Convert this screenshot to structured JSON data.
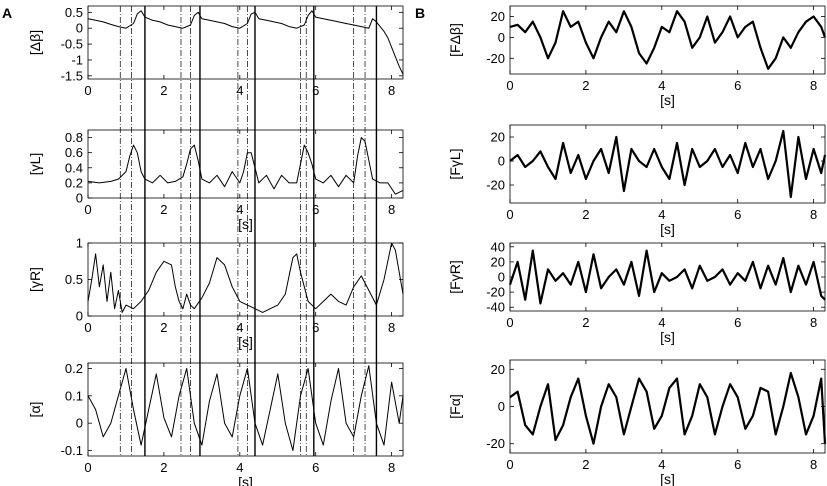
{
  "figure": {
    "panel_letters": [
      "A",
      "B"
    ]
  },
  "chart_data": [
    {
      "type": "line",
      "panel": "A",
      "ylabel": "[Δβ]",
      "xlabel": "",
      "xlim": [
        0,
        8.3
      ],
      "ylim": [
        -1.6,
        0.7
      ],
      "xticks": [
        0,
        2,
        4,
        6,
        8
      ],
      "yticks": [
        -1.5,
        -1,
        -0.5,
        0,
        0.5
      ],
      "ytick_labels": [
        "-1.5",
        "-1",
        "-0.5",
        "0",
        "0.5"
      ],
      "series": [
        {
          "color": "#000000",
          "x": [
            0,
            0.2,
            0.4,
            0.6,
            0.8,
            1.0,
            1.2,
            1.3,
            1.4,
            1.5,
            1.7,
            1.9,
            2.1,
            2.3,
            2.5,
            2.7,
            2.8,
            2.9,
            3.0,
            3.2,
            3.4,
            3.6,
            3.8,
            4.0,
            4.2,
            4.3,
            4.4,
            4.5,
            4.7,
            4.9,
            5.1,
            5.3,
            5.5,
            5.7,
            5.8,
            5.9,
            6.0,
            6.2,
            6.4,
            6.6,
            6.8,
            7.0,
            7.2,
            7.4,
            7.5,
            7.6,
            7.7,
            7.8,
            7.9,
            8.0,
            8.1,
            8.2,
            8.3
          ],
          "y": [
            0.3,
            0.25,
            0.2,
            0.12,
            0.05,
            0.0,
            0.15,
            0.45,
            0.55,
            0.35,
            0.25,
            0.2,
            0.1,
            0.05,
            0.0,
            0.1,
            0.4,
            0.5,
            0.3,
            0.25,
            0.2,
            0.15,
            0.05,
            0.0,
            0.15,
            0.45,
            0.5,
            0.3,
            0.25,
            0.2,
            0.15,
            0.05,
            0.0,
            0.1,
            0.4,
            0.55,
            0.35,
            0.3,
            0.25,
            0.2,
            0.15,
            0.1,
            0.05,
            0.0,
            0.3,
            0.2,
            0.05,
            -0.1,
            -0.3,
            -0.6,
            -0.9,
            -1.2,
            -1.45
          ]
        }
      ]
    },
    {
      "type": "line",
      "panel": "A",
      "ylabel": "[γL]",
      "xlabel": "[s]",
      "xlim": [
        0,
        8.3
      ],
      "ylim": [
        0,
        0.9
      ],
      "xticks": [
        0,
        2,
        4,
        6,
        8
      ],
      "yticks": [
        0,
        0.2,
        0.4,
        0.6,
        0.8
      ],
      "ytick_labels": [
        "0",
        "0.2",
        "0.4",
        "0.6",
        "0.8"
      ],
      "series": [
        {
          "color": "#000000",
          "x": [
            0,
            0.3,
            0.6,
            0.8,
            1.0,
            1.1,
            1.2,
            1.3,
            1.4,
            1.5,
            1.7,
            1.9,
            2.1,
            2.3,
            2.5,
            2.6,
            2.7,
            2.8,
            2.9,
            3.0,
            3.2,
            3.4,
            3.6,
            3.8,
            4.0,
            4.1,
            4.2,
            4.3,
            4.4,
            4.5,
            4.7,
            4.9,
            5.1,
            5.3,
            5.5,
            5.6,
            5.7,
            5.8,
            5.9,
            6.0,
            6.2,
            6.4,
            6.6,
            6.8,
            7.0,
            7.1,
            7.2,
            7.3,
            7.4,
            7.5,
            7.7,
            7.9,
            8.1,
            8.3
          ],
          "y": [
            0.22,
            0.2,
            0.22,
            0.25,
            0.35,
            0.55,
            0.7,
            0.6,
            0.35,
            0.25,
            0.2,
            0.3,
            0.2,
            0.22,
            0.28,
            0.45,
            0.65,
            0.7,
            0.5,
            0.25,
            0.2,
            0.3,
            0.15,
            0.35,
            0.2,
            0.35,
            0.6,
            0.6,
            0.4,
            0.2,
            0.3,
            0.12,
            0.3,
            0.2,
            0.2,
            0.45,
            0.7,
            0.6,
            0.45,
            0.25,
            0.2,
            0.3,
            0.15,
            0.3,
            0.2,
            0.55,
            0.8,
            0.75,
            0.5,
            0.25,
            0.2,
            0.2,
            0.05,
            0.1
          ]
        }
      ]
    },
    {
      "type": "line",
      "panel": "A",
      "ylabel": "[γR]",
      "xlabel": "[s]",
      "xlim": [
        0,
        8.3
      ],
      "ylim": [
        0,
        1
      ],
      "xticks": [
        0,
        2,
        4,
        6,
        8
      ],
      "yticks": [
        0,
        0.5,
        1
      ],
      "ytick_labels": [
        "0",
        "0.5",
        "1"
      ],
      "series": [
        {
          "color": "#000000",
          "x": [
            0,
            0.1,
            0.2,
            0.3,
            0.4,
            0.5,
            0.6,
            0.7,
            0.8,
            0.9,
            1.0,
            1.2,
            1.4,
            1.6,
            1.8,
            2.0,
            2.2,
            2.3,
            2.4,
            2.5,
            2.6,
            2.7,
            2.8,
            3.0,
            3.2,
            3.4,
            3.6,
            3.8,
            4.0,
            4.2,
            4.4,
            4.6,
            4.8,
            5.0,
            5.2,
            5.3,
            5.4,
            5.5,
            5.6,
            5.7,
            5.8,
            6.0,
            6.2,
            6.4,
            6.6,
            6.8,
            7.0,
            7.2,
            7.4,
            7.6,
            7.8,
            7.9,
            8.0,
            8.1,
            8.2,
            8.3
          ],
          "y": [
            0.2,
            0.5,
            0.85,
            0.4,
            0.7,
            0.2,
            0.6,
            0.1,
            0.35,
            0.05,
            0.15,
            0.1,
            0.2,
            0.35,
            0.6,
            0.75,
            0.7,
            0.4,
            0.2,
            0.1,
            0.3,
            0.15,
            0.1,
            0.25,
            0.45,
            0.8,
            0.7,
            0.4,
            0.2,
            0.15,
            0.1,
            0.05,
            0.1,
            0.15,
            0.3,
            0.55,
            0.8,
            0.85,
            0.6,
            0.4,
            0.2,
            0.1,
            0.2,
            0.3,
            0.2,
            0.15,
            0.4,
            0.55,
            0.35,
            0.15,
            0.5,
            0.75,
            1.0,
            0.9,
            0.6,
            0.3
          ]
        }
      ]
    },
    {
      "type": "line",
      "panel": "A",
      "ylabel": "[α]",
      "xlabel": "[s]",
      "xlim": [
        0,
        8.3
      ],
      "ylim": [
        -0.12,
        0.22
      ],
      "xticks": [
        0,
        2,
        4,
        6,
        8
      ],
      "yticks": [
        -0.1,
        0,
        0.1,
        0.2
      ],
      "ytick_labels": [
        "-0.1",
        "0",
        "0.1",
        "0.2"
      ],
      "series": [
        {
          "color": "#000000",
          "x": [
            0,
            0.2,
            0.4,
            0.6,
            0.8,
            1.0,
            1.2,
            1.4,
            1.6,
            1.8,
            2.0,
            2.2,
            2.4,
            2.6,
            2.8,
            3.0,
            3.2,
            3.4,
            3.6,
            3.8,
            4.0,
            4.2,
            4.4,
            4.6,
            4.8,
            5.0,
            5.2,
            5.4,
            5.6,
            5.8,
            6.0,
            6.2,
            6.4,
            6.6,
            6.8,
            7.0,
            7.2,
            7.4,
            7.6,
            7.8,
            8.0,
            8.2,
            8.3
          ],
          "y": [
            0.1,
            0.05,
            -0.05,
            0.0,
            0.1,
            0.2,
            0.05,
            -0.08,
            0.05,
            0.18,
            0.02,
            -0.05,
            0.1,
            0.2,
            0.0,
            -0.08,
            0.08,
            0.18,
            0.0,
            -0.05,
            0.1,
            0.2,
            0.0,
            -0.08,
            0.05,
            0.18,
            0.0,
            -0.1,
            0.1,
            0.2,
            0.0,
            -0.08,
            0.08,
            0.2,
            0.0,
            -0.05,
            0.1,
            0.21,
            0.0,
            -0.08,
            0.15,
            0.0,
            0.1
          ]
        }
      ]
    },
    {
      "type": "line",
      "panel": "B",
      "ylabel": "[FΔβ]",
      "xlabel": "[s]",
      "xlim": [
        0,
        8.3
      ],
      "ylim": [
        -35,
        30
      ],
      "xticks": [
        0,
        2,
        4,
        6,
        8
      ],
      "yticks": [
        -20,
        0,
        20
      ],
      "ytick_labels": [
        "-20",
        "0",
        "20"
      ],
      "series": [
        {
          "color": "#000000",
          "x": [
            0,
            0.2,
            0.4,
            0.6,
            0.8,
            1.0,
            1.2,
            1.4,
            1.6,
            1.8,
            2.0,
            2.2,
            2.4,
            2.6,
            2.8,
            3.0,
            3.2,
            3.4,
            3.6,
            3.8,
            4.0,
            4.2,
            4.4,
            4.6,
            4.8,
            5.0,
            5.2,
            5.4,
            5.6,
            5.8,
            6.0,
            6.2,
            6.4,
            6.6,
            6.8,
            7.0,
            7.2,
            7.4,
            7.6,
            7.8,
            8.0,
            8.2,
            8.3
          ],
          "y": [
            10,
            12,
            5,
            15,
            0,
            -20,
            -5,
            25,
            10,
            15,
            -5,
            -20,
            0,
            15,
            5,
            25,
            10,
            -15,
            -25,
            -10,
            10,
            5,
            25,
            15,
            -10,
            0,
            20,
            -5,
            5,
            20,
            0,
            10,
            15,
            -10,
            -30,
            -20,
            0,
            -10,
            5,
            15,
            20,
            10,
            0
          ]
        }
      ]
    },
    {
      "type": "line",
      "panel": "B",
      "ylabel": "[FγL]",
      "xlabel": "[s]",
      "xlim": [
        0,
        8.3
      ],
      "ylim": [
        -35,
        30
      ],
      "xticks": [
        0,
        2,
        4,
        6,
        8
      ],
      "yticks": [
        -20,
        0,
        20
      ],
      "ytick_labels": [
        "-20",
        "0",
        "20"
      ],
      "series": [
        {
          "color": "#000000",
          "x": [
            0,
            0.2,
            0.4,
            0.6,
            0.8,
            1.0,
            1.2,
            1.4,
            1.6,
            1.8,
            2.0,
            2.2,
            2.4,
            2.6,
            2.8,
            3.0,
            3.2,
            3.4,
            3.6,
            3.8,
            4.0,
            4.2,
            4.4,
            4.6,
            4.8,
            5.0,
            5.2,
            5.4,
            5.6,
            5.8,
            6.0,
            6.2,
            6.4,
            6.6,
            6.8,
            7.0,
            7.2,
            7.4,
            7.6,
            7.8,
            8.0,
            8.2,
            8.3
          ],
          "y": [
            0,
            5,
            -5,
            0,
            8,
            -5,
            -15,
            15,
            -10,
            5,
            -15,
            0,
            10,
            -10,
            20,
            -25,
            10,
            0,
            -5,
            10,
            -5,
            -15,
            15,
            -20,
            10,
            -5,
            0,
            10,
            -5,
            5,
            -10,
            15,
            -5,
            10,
            -15,
            0,
            25,
            -30,
            20,
            -15,
            10,
            -10,
            5
          ]
        }
      ]
    },
    {
      "type": "line",
      "panel": "B",
      "ylabel": "[FγR]",
      "xlabel": "[s]",
      "xlim": [
        0,
        8.3
      ],
      "ylim": [
        -45,
        45
      ],
      "xticks": [
        0,
        2,
        4,
        6,
        8
      ],
      "yticks": [
        -40,
        -20,
        0,
        20,
        40
      ],
      "ytick_labels": [
        "-40",
        "-20",
        "0",
        "20",
        "40"
      ],
      "series": [
        {
          "color": "#000000",
          "x": [
            0,
            0.2,
            0.4,
            0.6,
            0.8,
            1.0,
            1.2,
            1.4,
            1.6,
            1.8,
            2.0,
            2.2,
            2.4,
            2.6,
            2.8,
            3.0,
            3.2,
            3.4,
            3.6,
            3.8,
            4.0,
            4.2,
            4.4,
            4.6,
            4.8,
            5.0,
            5.2,
            5.4,
            5.6,
            5.8,
            6.0,
            6.2,
            6.4,
            6.6,
            6.8,
            7.0,
            7.2,
            7.4,
            7.6,
            7.8,
            8.0,
            8.2,
            8.3
          ],
          "y": [
            -10,
            20,
            -30,
            35,
            -35,
            10,
            -5,
            5,
            -10,
            20,
            -20,
            30,
            -15,
            0,
            10,
            -10,
            20,
            -25,
            35,
            -20,
            5,
            -5,
            0,
            10,
            -15,
            15,
            -5,
            0,
            10,
            -10,
            5,
            -5,
            20,
            -15,
            15,
            -10,
            25,
            -20,
            15,
            -10,
            20,
            -25,
            -30
          ]
        }
      ]
    },
    {
      "type": "line",
      "panel": "B",
      "ylabel": "[Fα]",
      "xlabel": "[s]",
      "xlim": [
        0,
        8.3
      ],
      "ylim": [
        -25,
        25
      ],
      "xticks": [
        0,
        2,
        4,
        6,
        8
      ],
      "yticks": [
        -20,
        0,
        20
      ],
      "ytick_labels": [
        "-20",
        "0",
        "20"
      ],
      "series": [
        {
          "color": "#000000",
          "x": [
            0,
            0.2,
            0.4,
            0.6,
            0.8,
            1.0,
            1.2,
            1.4,
            1.6,
            1.8,
            2.0,
            2.2,
            2.4,
            2.6,
            2.8,
            3.0,
            3.2,
            3.4,
            3.6,
            3.8,
            4.0,
            4.2,
            4.4,
            4.6,
            4.8,
            5.0,
            5.2,
            5.4,
            5.6,
            5.8,
            6.0,
            6.2,
            6.4,
            6.6,
            6.8,
            7.0,
            7.2,
            7.4,
            7.6,
            7.8,
            8.0,
            8.2,
            8.3
          ],
          "y": [
            5,
            8,
            -10,
            -15,
            0,
            12,
            -18,
            -10,
            5,
            15,
            -5,
            -20,
            0,
            12,
            5,
            -15,
            0,
            15,
            8,
            -12,
            -5,
            10,
            15,
            -15,
            -5,
            12,
            5,
            -15,
            0,
            12,
            5,
            -12,
            -5,
            10,
            8,
            -15,
            0,
            18,
            5,
            -15,
            -5,
            15,
            -20
          ]
        }
      ]
    }
  ],
  "annotations": {
    "solid_lines_s": [
      1.5,
      2.95,
      4.4,
      5.95,
      7.6
    ],
    "dashdot_lines_s": [
      0.85,
      1.15,
      2.45,
      2.7,
      3.95,
      4.2,
      5.6,
      5.75,
      7.0,
      7.3
    ]
  }
}
